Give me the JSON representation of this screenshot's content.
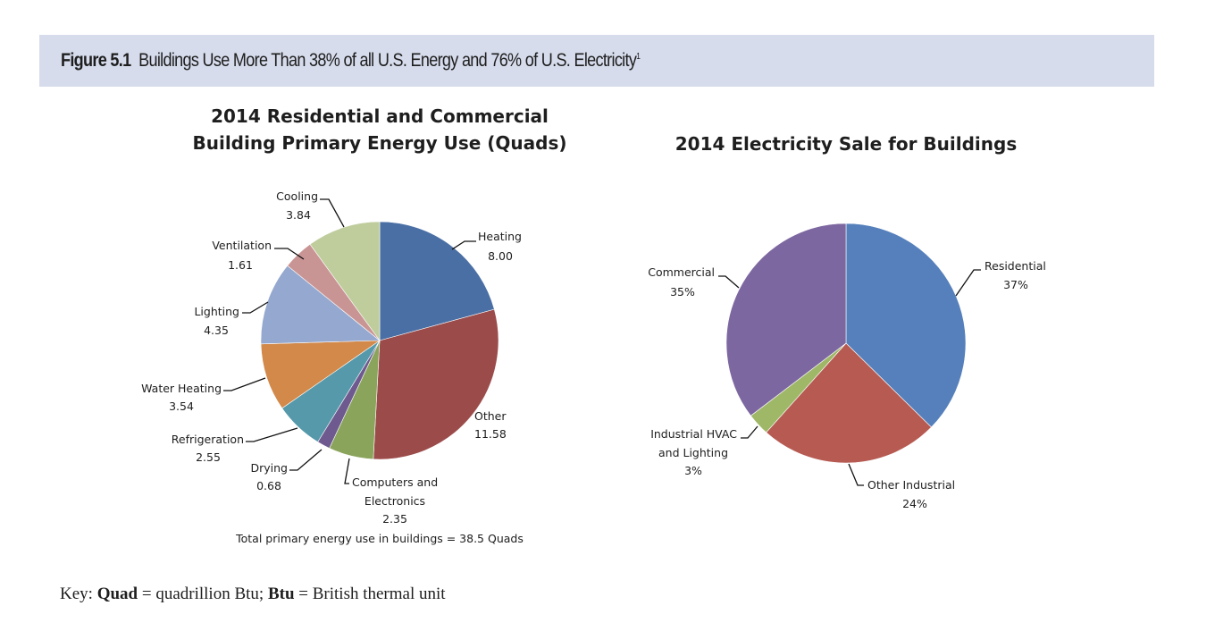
{
  "figure": {
    "label": "Figure 5.1",
    "caption": "Buildings Use More Than 38% of all U.S. Energy and 76% of U.S. Electricity",
    "footnote_mark": "1"
  },
  "chart_data": [
    {
      "type": "pie",
      "title_lines": [
        "2014 Residential and Commercial",
        "Building Primary Energy Use (Quads)"
      ],
      "units": "Quads",
      "start": "12 o'clock, clockwise",
      "slices": [
        {
          "label": "Heating",
          "value": 8.0,
          "display": "8.00",
          "color": "#4a6fa5"
        },
        {
          "label": "Other",
          "value": 11.58,
          "display": "11.58",
          "color": "#9b4c4a"
        },
        {
          "label": "Computers and Electronics",
          "value": 2.35,
          "display": "2.35",
          "color": "#8aa45c"
        },
        {
          "label": "Drying",
          "value": 0.68,
          "display": "0.68",
          "color": "#6e5a8e"
        },
        {
          "label": "Refrigeration",
          "value": 2.55,
          "display": "2.55",
          "color": "#5599ab"
        },
        {
          "label": "Water Heating",
          "value": 3.54,
          "display": "3.54",
          "color": "#d2894a"
        },
        {
          "label": "Lighting",
          "value": 4.35,
          "display": "4.35",
          "color": "#95a8cf"
        },
        {
          "label": "Ventilation",
          "value": 1.61,
          "display": "1.61",
          "color": "#c99494"
        },
        {
          "label": "Cooling",
          "value": 3.84,
          "display": "3.84",
          "color": "#bfcd9d"
        }
      ],
      "footer": "Total primary energy use in buildings = 38.5 Quads",
      "total": 38.5
    },
    {
      "type": "pie",
      "title_lines": [
        "2014 Electricity Sale for Buildings"
      ],
      "units": "%",
      "start": "12 o'clock, clockwise",
      "slices": [
        {
          "label": "Residential",
          "value": 37,
          "display": "37%",
          "color": "#5580bb"
        },
        {
          "label": "Other Industrial",
          "value": 24,
          "display": "24%",
          "color": "#b65a52"
        },
        {
          "label": "Industrial HVAC and Lighting",
          "value": 3,
          "display": "3%",
          "color": "#9fb868"
        },
        {
          "label": "Commercial",
          "value": 35,
          "display": "35%",
          "color": "#7d67a0"
        }
      ]
    }
  ],
  "key": {
    "prefix": "Key: ",
    "term1": "Quad",
    "def1": " = quadrillion Btu; ",
    "term2": "Btu",
    "def2": " = British thermal unit"
  }
}
